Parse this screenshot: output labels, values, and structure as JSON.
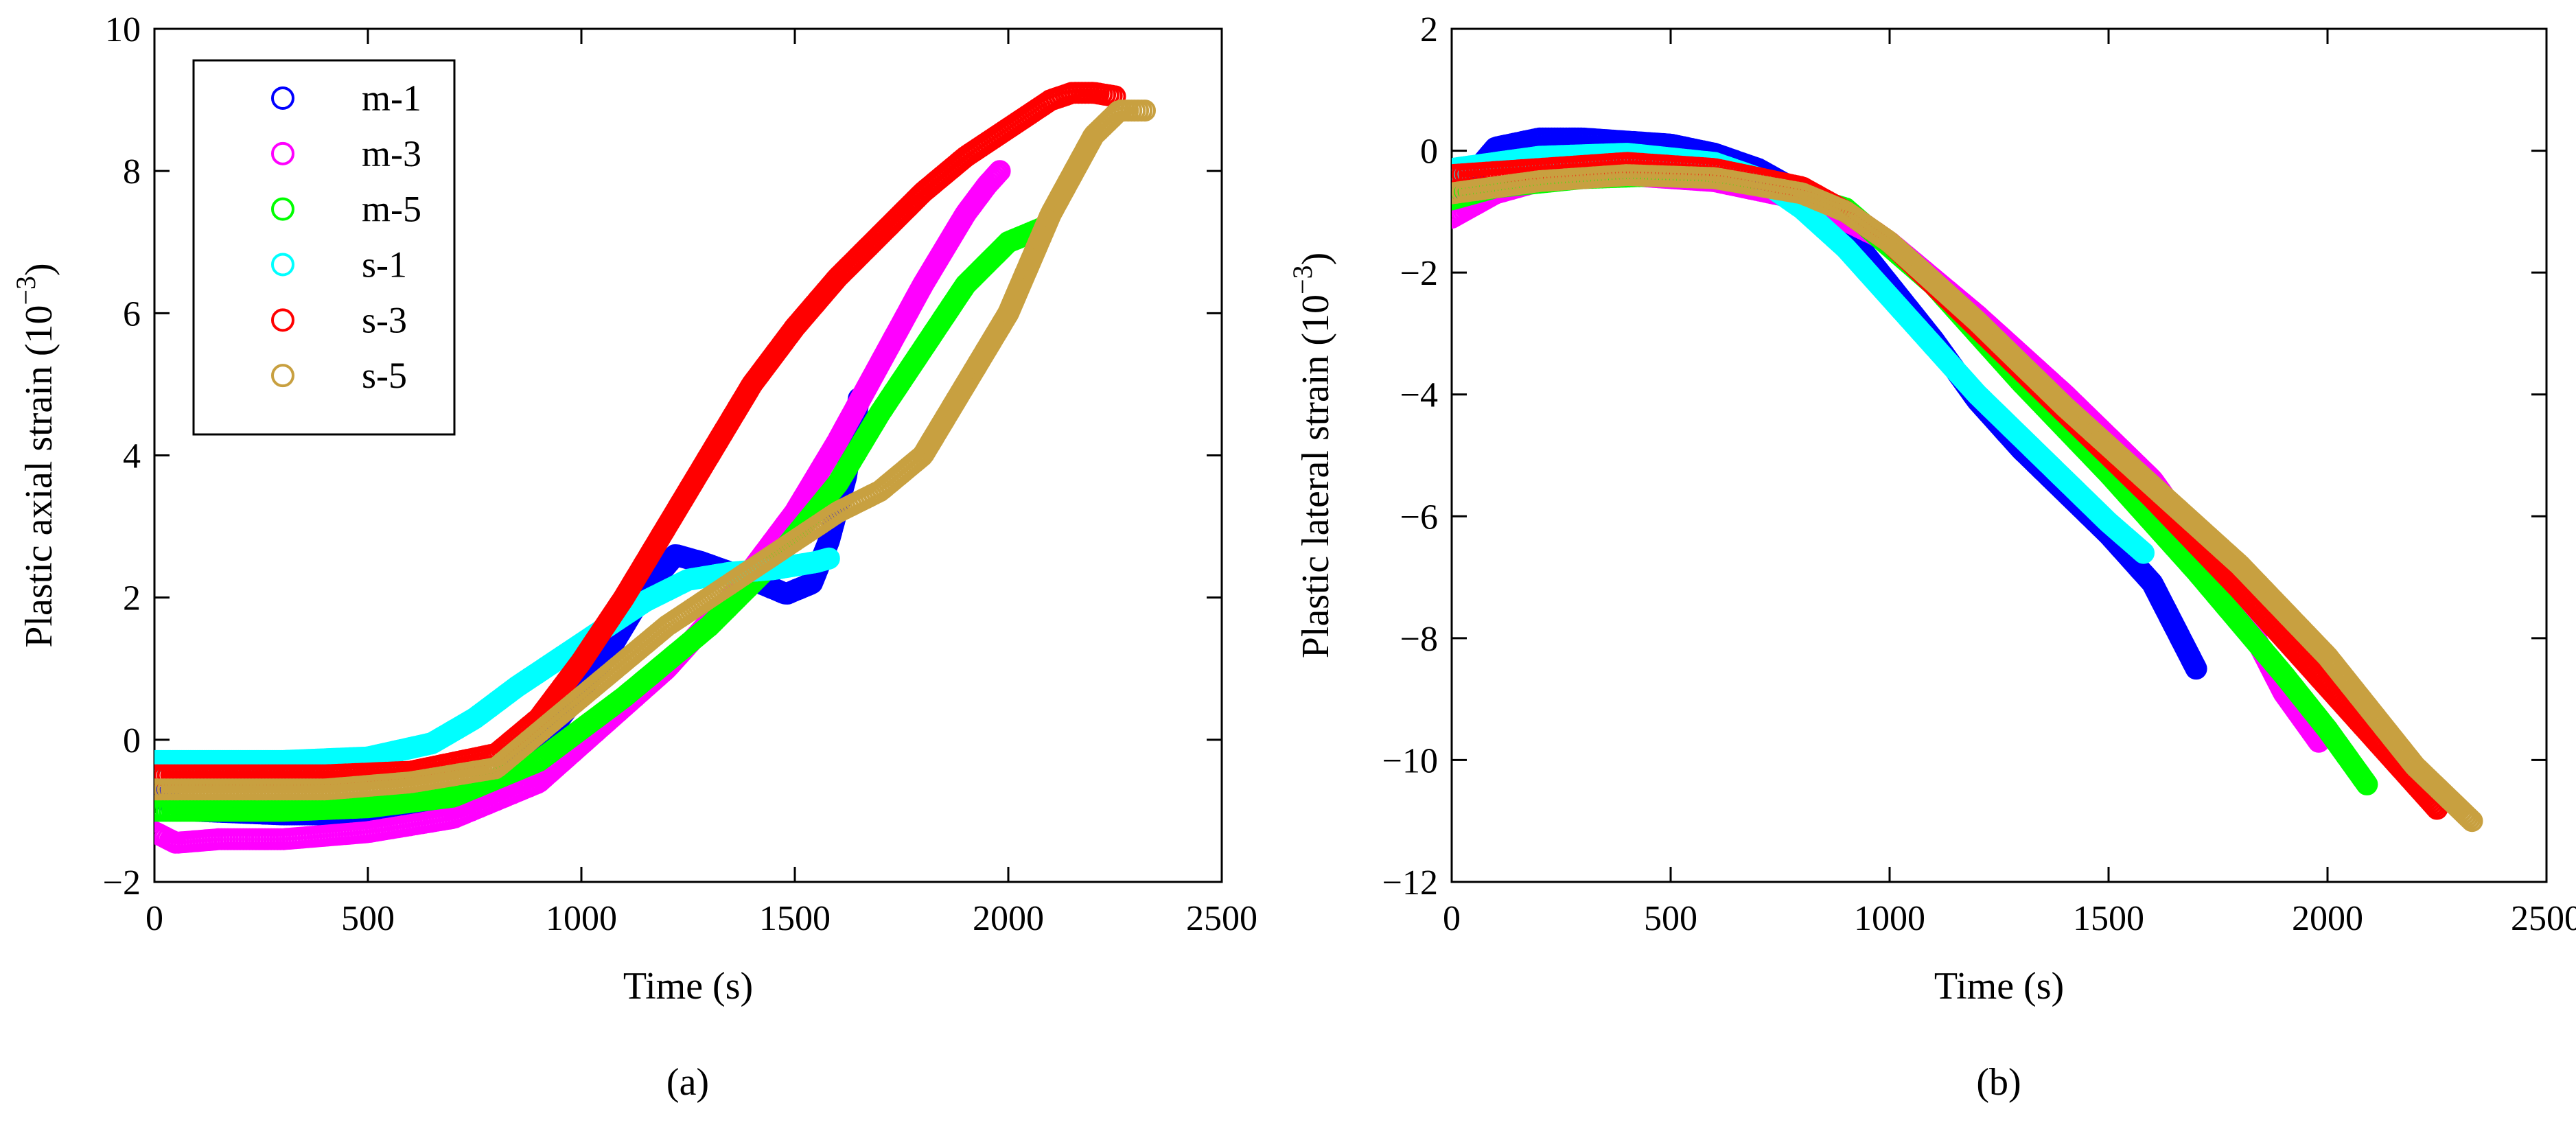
{
  "chart_data": [
    {
      "type": "scatter",
      "panel": "a",
      "caption": "(a)",
      "xlabel": "Time (s)",
      "ylabel": "Plastic axial strain (10",
      "ylabel_exponent": "−3",
      "ylabel_suffix": ")",
      "xlim": [
        0,
        2500
      ],
      "ylim": [
        -2,
        10
      ],
      "xticks": [
        0,
        500,
        1000,
        1500,
        2000,
        2500
      ],
      "yticks": [
        -2,
        0,
        2,
        4,
        6,
        8,
        10
      ],
      "ytick_labels": [
        "−2",
        "0",
        "2",
        "4",
        "6",
        "8",
        "10"
      ],
      "legend": "top-left",
      "series": [
        {
          "name": "m-1",
          "color": "#0000ff",
          "x": [
            0,
            100,
            300,
            500,
            650,
            800,
            950,
            1050,
            1150,
            1220,
            1280,
            1350,
            1420,
            1480,
            1540,
            1580,
            1620,
            1650
          ],
          "y": [
            -0.8,
            -1.0,
            -1.05,
            -1.05,
            -0.95,
            -0.6,
            0.3,
            1.1,
            2.1,
            2.6,
            2.5,
            2.35,
            2.2,
            2.05,
            2.2,
            2.8,
            3.7,
            4.8
          ]
        },
        {
          "name": "m-3",
          "color": "#ff00ff",
          "x": [
            0,
            50,
            150,
            300,
            500,
            700,
            900,
            1050,
            1200,
            1350,
            1500,
            1600,
            1700,
            1800,
            1900,
            1950,
            1980
          ],
          "y": [
            -1.3,
            -1.45,
            -1.4,
            -1.4,
            -1.3,
            -1.1,
            -0.6,
            0.2,
            1.0,
            2.0,
            3.2,
            4.2,
            5.3,
            6.4,
            7.4,
            7.8,
            8.0
          ]
        },
        {
          "name": "m-5",
          "color": "#00ff00",
          "x": [
            0,
            100,
            300,
            500,
            700,
            900,
            1100,
            1300,
            1450,
            1600,
            1700,
            1800,
            1900,
            2000,
            2080
          ],
          "y": [
            -1.0,
            -1.0,
            -1.0,
            -0.95,
            -0.8,
            -0.3,
            0.6,
            1.6,
            2.5,
            3.6,
            4.6,
            5.5,
            6.4,
            7.0,
            7.2
          ]
        },
        {
          "name": "s-1",
          "color": "#00ffff",
          "x": [
            0,
            100,
            300,
            500,
            650,
            750,
            850,
            950,
            1050,
            1150,
            1250,
            1350,
            1450,
            1550,
            1580
          ],
          "y": [
            -0.3,
            -0.3,
            -0.3,
            -0.25,
            -0.05,
            0.3,
            0.75,
            1.15,
            1.55,
            1.95,
            2.25,
            2.35,
            2.4,
            2.5,
            2.55
          ]
        },
        {
          "name": "s-3",
          "color": "#ff0000",
          "x": [
            0,
            200,
            400,
            600,
            800,
            900,
            1000,
            1100,
            1200,
            1300,
            1400,
            1500,
            1600,
            1700,
            1800,
            1900,
            2000,
            2100,
            2150,
            2200,
            2250
          ],
          "y": [
            -0.5,
            -0.5,
            -0.5,
            -0.45,
            -0.2,
            0.3,
            1.1,
            2.0,
            3.0,
            4.0,
            5.0,
            5.8,
            6.5,
            7.1,
            7.7,
            8.2,
            8.6,
            9.0,
            9.1,
            9.1,
            9.05
          ]
        },
        {
          "name": "s-5",
          "color": "#c8a040",
          "x": [
            0,
            200,
            400,
            600,
            800,
            1000,
            1200,
            1400,
            1600,
            1700,
            1800,
            1900,
            2000,
            2100,
            2200,
            2260,
            2320
          ],
          "y": [
            -0.7,
            -0.7,
            -0.7,
            -0.6,
            -0.4,
            0.6,
            1.6,
            2.4,
            3.2,
            3.5,
            4.0,
            5.0,
            6.0,
            7.4,
            8.5,
            8.85,
            8.85
          ]
        }
      ]
    },
    {
      "type": "scatter",
      "panel": "b",
      "caption": "(b)",
      "xlabel": "Time (s)",
      "ylabel": "Plastic lateral strain (10",
      "ylabel_exponent": "−3",
      "ylabel_suffix": ")",
      "xlim": [
        0,
        2500
      ],
      "ylim": [
        -12,
        2
      ],
      "xticks": [
        0,
        500,
        1000,
        1500,
        2000,
        2500
      ],
      "yticks": [
        -12,
        -10,
        -8,
        -6,
        -4,
        -2,
        0,
        2
      ],
      "ytick_labels": [
        "−12",
        "−10",
        "−8",
        "−6",
        "−4",
        "−2",
        "0",
        "2"
      ],
      "legend": "none",
      "series": [
        {
          "name": "m-1",
          "color": "#0000ff",
          "x": [
            0,
            100,
            200,
            300,
            400,
            500,
            600,
            700,
            800,
            900,
            1000,
            1100,
            1200,
            1300,
            1400,
            1500,
            1600,
            1650,
            1700
          ],
          "y": [
            -0.8,
            0.05,
            0.2,
            0.2,
            0.15,
            0.1,
            -0.05,
            -0.3,
            -0.7,
            -1.3,
            -2.2,
            -3.1,
            -4.1,
            -4.9,
            -5.6,
            -6.3,
            -7.1,
            -7.8,
            -8.5
          ]
        },
        {
          "name": "m-3",
          "color": "#ff00ff",
          "x": [
            0,
            100,
            200,
            400,
            600,
            800,
            1000,
            1200,
            1400,
            1600,
            1700,
            1800,
            1900,
            1980
          ],
          "y": [
            -1.1,
            -0.7,
            -0.5,
            -0.4,
            -0.5,
            -0.8,
            -1.5,
            -2.7,
            -4.0,
            -5.4,
            -6.4,
            -7.5,
            -8.9,
            -9.7
          ]
        },
        {
          "name": "m-5",
          "color": "#00ff00",
          "x": [
            0,
            100,
            300,
            500,
            700,
            900,
            1100,
            1300,
            1500,
            1700,
            1900,
            2000,
            2090
          ],
          "y": [
            -0.8,
            -0.6,
            -0.45,
            -0.4,
            -0.5,
            -0.95,
            -2.2,
            -3.8,
            -5.3,
            -6.9,
            -8.6,
            -9.5,
            -10.4
          ]
        },
        {
          "name": "s-1",
          "color": "#00ffff",
          "x": [
            0,
            200,
            400,
            600,
            700,
            800,
            900,
            1000,
            1100,
            1200,
            1300,
            1400,
            1500,
            1580
          ],
          "y": [
            -0.3,
            -0.1,
            -0.05,
            -0.2,
            -0.45,
            -0.95,
            -1.6,
            -2.4,
            -3.2,
            -4.0,
            -4.7,
            -5.4,
            -6.1,
            -6.6
          ]
        },
        {
          "name": "s-3",
          "color": "#ff0000",
          "x": [
            0,
            200,
            400,
            600,
            800,
            900,
            1000,
            1100,
            1200,
            1400,
            1600,
            1800,
            2000,
            2100,
            2200,
            2250
          ],
          "y": [
            -0.4,
            -0.3,
            -0.2,
            -0.3,
            -0.6,
            -1.0,
            -1.5,
            -2.2,
            -2.9,
            -4.3,
            -5.7,
            -7.2,
            -8.8,
            -9.6,
            -10.4,
            -10.8
          ]
        },
        {
          "name": "s-5",
          "color": "#c8a040",
          "x": [
            0,
            200,
            400,
            600,
            800,
            900,
            1000,
            1200,
            1400,
            1600,
            1800,
            2000,
            2100,
            2200,
            2330
          ],
          "y": [
            -0.7,
            -0.5,
            -0.4,
            -0.45,
            -0.7,
            -1.0,
            -1.5,
            -2.8,
            -4.2,
            -5.5,
            -6.8,
            -8.3,
            -9.2,
            -10.1,
            -11.0
          ]
        }
      ]
    }
  ]
}
